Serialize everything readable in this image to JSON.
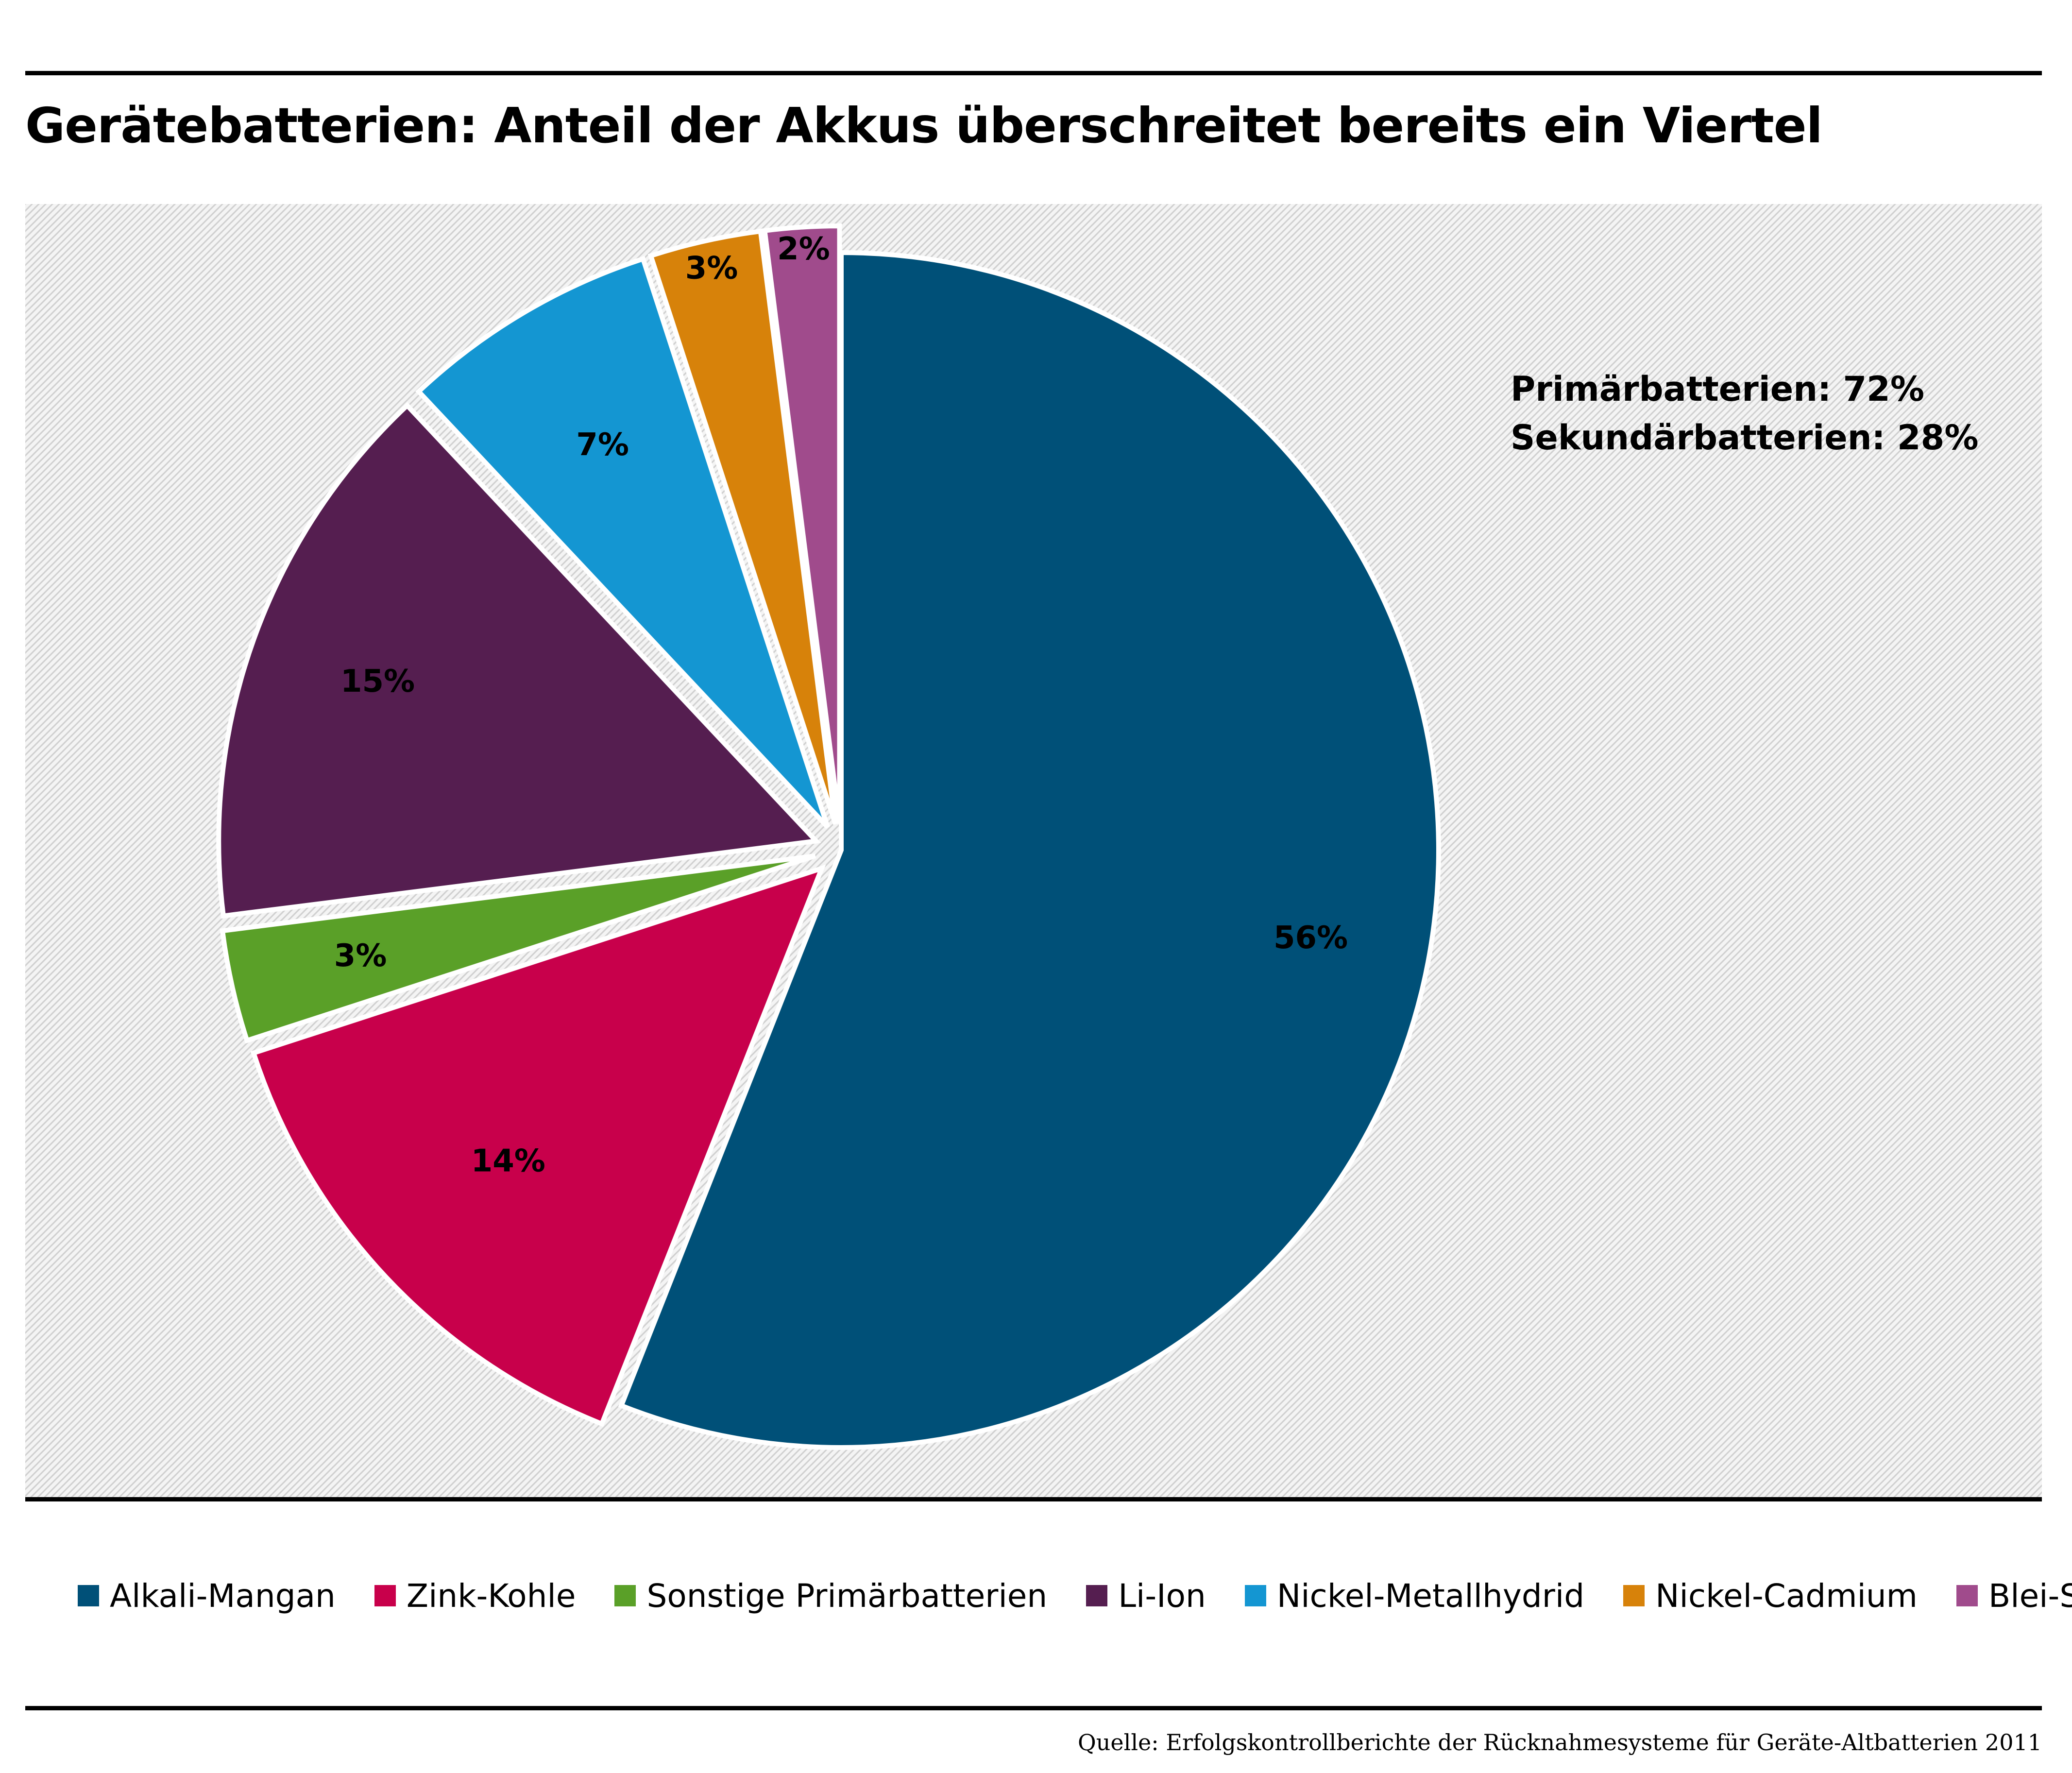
{
  "title": "Gerätebatterien: Anteil der Akkus überschreitet bereits ein Viertel",
  "summary": {
    "primary": "Primärbatterien: 72%",
    "secondary": "Sekundärbatterien: 28%"
  },
  "source": "Quelle: Erfolgskontrollberichte der Rücknahmesysteme für Geräte-Altbatterien 2011",
  "chart_data": {
    "type": "pie",
    "title": "Gerätebatterien: Anteil der Akkus überschreitet bereits ein Viertel",
    "start_angle": "12 o'clock, clockwise",
    "exploded": true,
    "legend_position": "bottom",
    "background": "diagonal hatching",
    "slices": [
      {
        "label": "Alkali-Mangan",
        "value": 56,
        "display": "56%",
        "color": "#005078"
      },
      {
        "label": "Zink-Kohle",
        "value": 14,
        "display": "14%",
        "color": "#c8004b"
      },
      {
        "label": "Sonstige Primärbatterien",
        "value": 3,
        "display": "3%",
        "color": "#5aa028"
      },
      {
        "label": "Li-Ion",
        "value": 15,
        "display": "15%",
        "color": "#551e50"
      },
      {
        "label": "Nickel-Metallhydrid",
        "value": 7,
        "display": "7%",
        "color": "#1496d2"
      },
      {
        "label": "Nickel-Cadmium",
        "value": 3,
        "display": "3%",
        "color": "#d7820a"
      },
      {
        "label": "Blei-Säure",
        "value": 2,
        "display": "2%",
        "color": "#a04b8c"
      }
    ]
  }
}
